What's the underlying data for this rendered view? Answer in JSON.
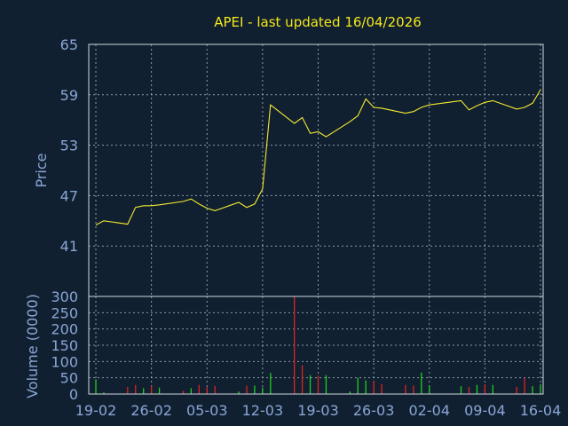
{
  "title": "APEI - last updated 16/04/2026",
  "colors": {
    "background": "#102030",
    "title": "#f5e81a",
    "labels": "#8aa6d6",
    "price_line": "#f5ea30",
    "volume_up": "#22cc22",
    "volume_down": "#dd2222"
  },
  "chart_data": [
    {
      "type": "line",
      "ylabel": "Price",
      "ylim": [
        35,
        65
      ],
      "yticks": [
        65,
        59,
        53,
        47,
        41
      ],
      "grid": true,
      "x": [
        "2026-02-19",
        "2026-02-20",
        "2026-02-23",
        "2026-02-24",
        "2026-02-25",
        "2026-02-26",
        "2026-02-27",
        "2026-03-02",
        "2026-03-03",
        "2026-03-04",
        "2026-03-05",
        "2026-03-06",
        "2026-03-09",
        "2026-03-10",
        "2026-03-11",
        "2026-03-12",
        "2026-03-13",
        "2026-03-16",
        "2026-03-17",
        "2026-03-18",
        "2026-03-19",
        "2026-03-20",
        "2026-03-23",
        "2026-03-24",
        "2026-03-25",
        "2026-03-26",
        "2026-03-27",
        "2026-03-30",
        "2026-03-31",
        "2026-04-01",
        "2026-04-02",
        "2026-04-06",
        "2026-04-07",
        "2026-04-08",
        "2026-04-09",
        "2026-04-10",
        "2026-04-13",
        "2026-04-14",
        "2026-04-15",
        "2026-04-16"
      ],
      "series": [
        {
          "values": [
            43.5,
            44.0,
            43.6,
            45.6,
            45.8,
            45.8,
            45.9,
            46.3,
            46.6,
            46.0,
            45.5,
            45.2,
            46.2,
            45.6,
            46.0,
            47.8,
            57.8,
            55.6,
            56.3,
            54.4,
            54.6,
            54.0,
            55.8,
            56.5,
            58.5,
            57.5,
            57.4,
            56.8,
            57.0,
            57.5,
            57.8,
            58.3,
            57.2,
            57.7,
            58.1,
            58.3,
            57.3,
            57.5,
            58.0,
            59.6
          ]
        }
      ]
    },
    {
      "type": "bar",
      "ylabel": "Volume (0000)",
      "ylim": [
        0,
        300
      ],
      "yticks": [
        300,
        250,
        200,
        150,
        100,
        50,
        0
      ],
      "grid": true,
      "categories": [
        "2026-02-19",
        "2026-02-20",
        "2026-02-23",
        "2026-02-24",
        "2026-02-25",
        "2026-02-26",
        "2026-02-27",
        "2026-03-02",
        "2026-03-03",
        "2026-03-04",
        "2026-03-05",
        "2026-03-06",
        "2026-03-09",
        "2026-03-10",
        "2026-03-11",
        "2026-03-12",
        "2026-03-13",
        "2026-03-16",
        "2026-03-17",
        "2026-03-18",
        "2026-03-19",
        "2026-03-20",
        "2026-03-23",
        "2026-03-24",
        "2026-03-25",
        "2026-03-26",
        "2026-03-27",
        "2026-03-30",
        "2026-03-31",
        "2026-04-01",
        "2026-04-02",
        "2026-04-06",
        "2026-04-07",
        "2026-04-08",
        "2026-04-09",
        "2026-04-10",
        "2026-04-13",
        "2026-04-14",
        "2026-04-15",
        "2026-04-16"
      ],
      "values": [
        45,
        5,
        22,
        28,
        18,
        25,
        20,
        10,
        18,
        28,
        22,
        25,
        8,
        26,
        26,
        20,
        65,
        300,
        88,
        58,
        56,
        58,
        8,
        50,
        42,
        40,
        30,
        28,
        26,
        66,
        26,
        24,
        22,
        28,
        30,
        28,
        22,
        50,
        24,
        30
      ],
      "direction": [
        "up",
        "up",
        "down",
        "down",
        "up",
        "down",
        "up",
        "down",
        "up",
        "down",
        "down",
        "down",
        "up",
        "down",
        "up",
        "up",
        "up",
        "down",
        "down",
        "up",
        "down",
        "up",
        "up",
        "up",
        "up",
        "down",
        "down",
        "down",
        "down",
        "up",
        "up",
        "up",
        "down",
        "up",
        "down",
        "up",
        "down",
        "down",
        "up",
        "up"
      ]
    }
  ],
  "x_tick_labels": [
    "19-02",
    "26-02",
    "05-03",
    "12-03",
    "19-03",
    "26-03",
    "02-04",
    "09-04",
    "16-04"
  ]
}
